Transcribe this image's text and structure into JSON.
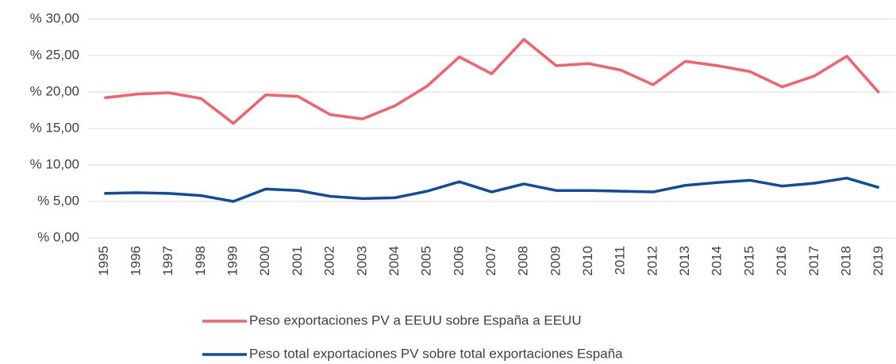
{
  "chart_data": {
    "type": "line",
    "categories": [
      "1995",
      "1996",
      "1997",
      "1998",
      "1999",
      "2000",
      "2001",
      "2002",
      "2003",
      "2004",
      "2005",
      "2006",
      "2007",
      "2008",
      "2009",
      "2010",
      "2011",
      "2012",
      "2013",
      "2014",
      "2015",
      "2016",
      "2017",
      "2018",
      "2019"
    ],
    "series": [
      {
        "name": "Peso exportaciones PV a EEUU sobre España a EEUU",
        "color": "#f4606c",
        "values": [
          19.2,
          19.7,
          19.9,
          19.1,
          15.7,
          19.6,
          19.4,
          16.9,
          16.3,
          18.1,
          20.8,
          24.8,
          22.5,
          27.2,
          23.6,
          23.9,
          23.0,
          21.0,
          24.2,
          23.6,
          22.8,
          20.7,
          22.2,
          24.9,
          19.9
        ]
      },
      {
        "name": "Peso total exportaciones PV sobre total exportaciones España",
        "color": "#0e4c9e",
        "values": [
          6.1,
          6.2,
          6.1,
          5.8,
          5.0,
          6.7,
          6.5,
          5.7,
          5.4,
          5.5,
          6.4,
          7.7,
          6.3,
          7.4,
          6.5,
          6.5,
          6.4,
          6.3,
          7.2,
          7.6,
          7.9,
          7.1,
          7.5,
          8.2,
          6.9
        ]
      }
    ],
    "ylim": [
      0,
      30
    ],
    "yticks": [
      {
        "value": 0,
        "label": "% 0,00"
      },
      {
        "value": 5,
        "label": "% 5,00"
      },
      {
        "value": 10,
        "label": "% 10,00"
      },
      {
        "value": 15,
        "label": "% 15,00"
      },
      {
        "value": 20,
        "label": "% 20,00"
      },
      {
        "value": 25,
        "label": "% 25,00"
      },
      {
        "value": 30,
        "label": "% 30,00"
      }
    ],
    "grid": true
  }
}
